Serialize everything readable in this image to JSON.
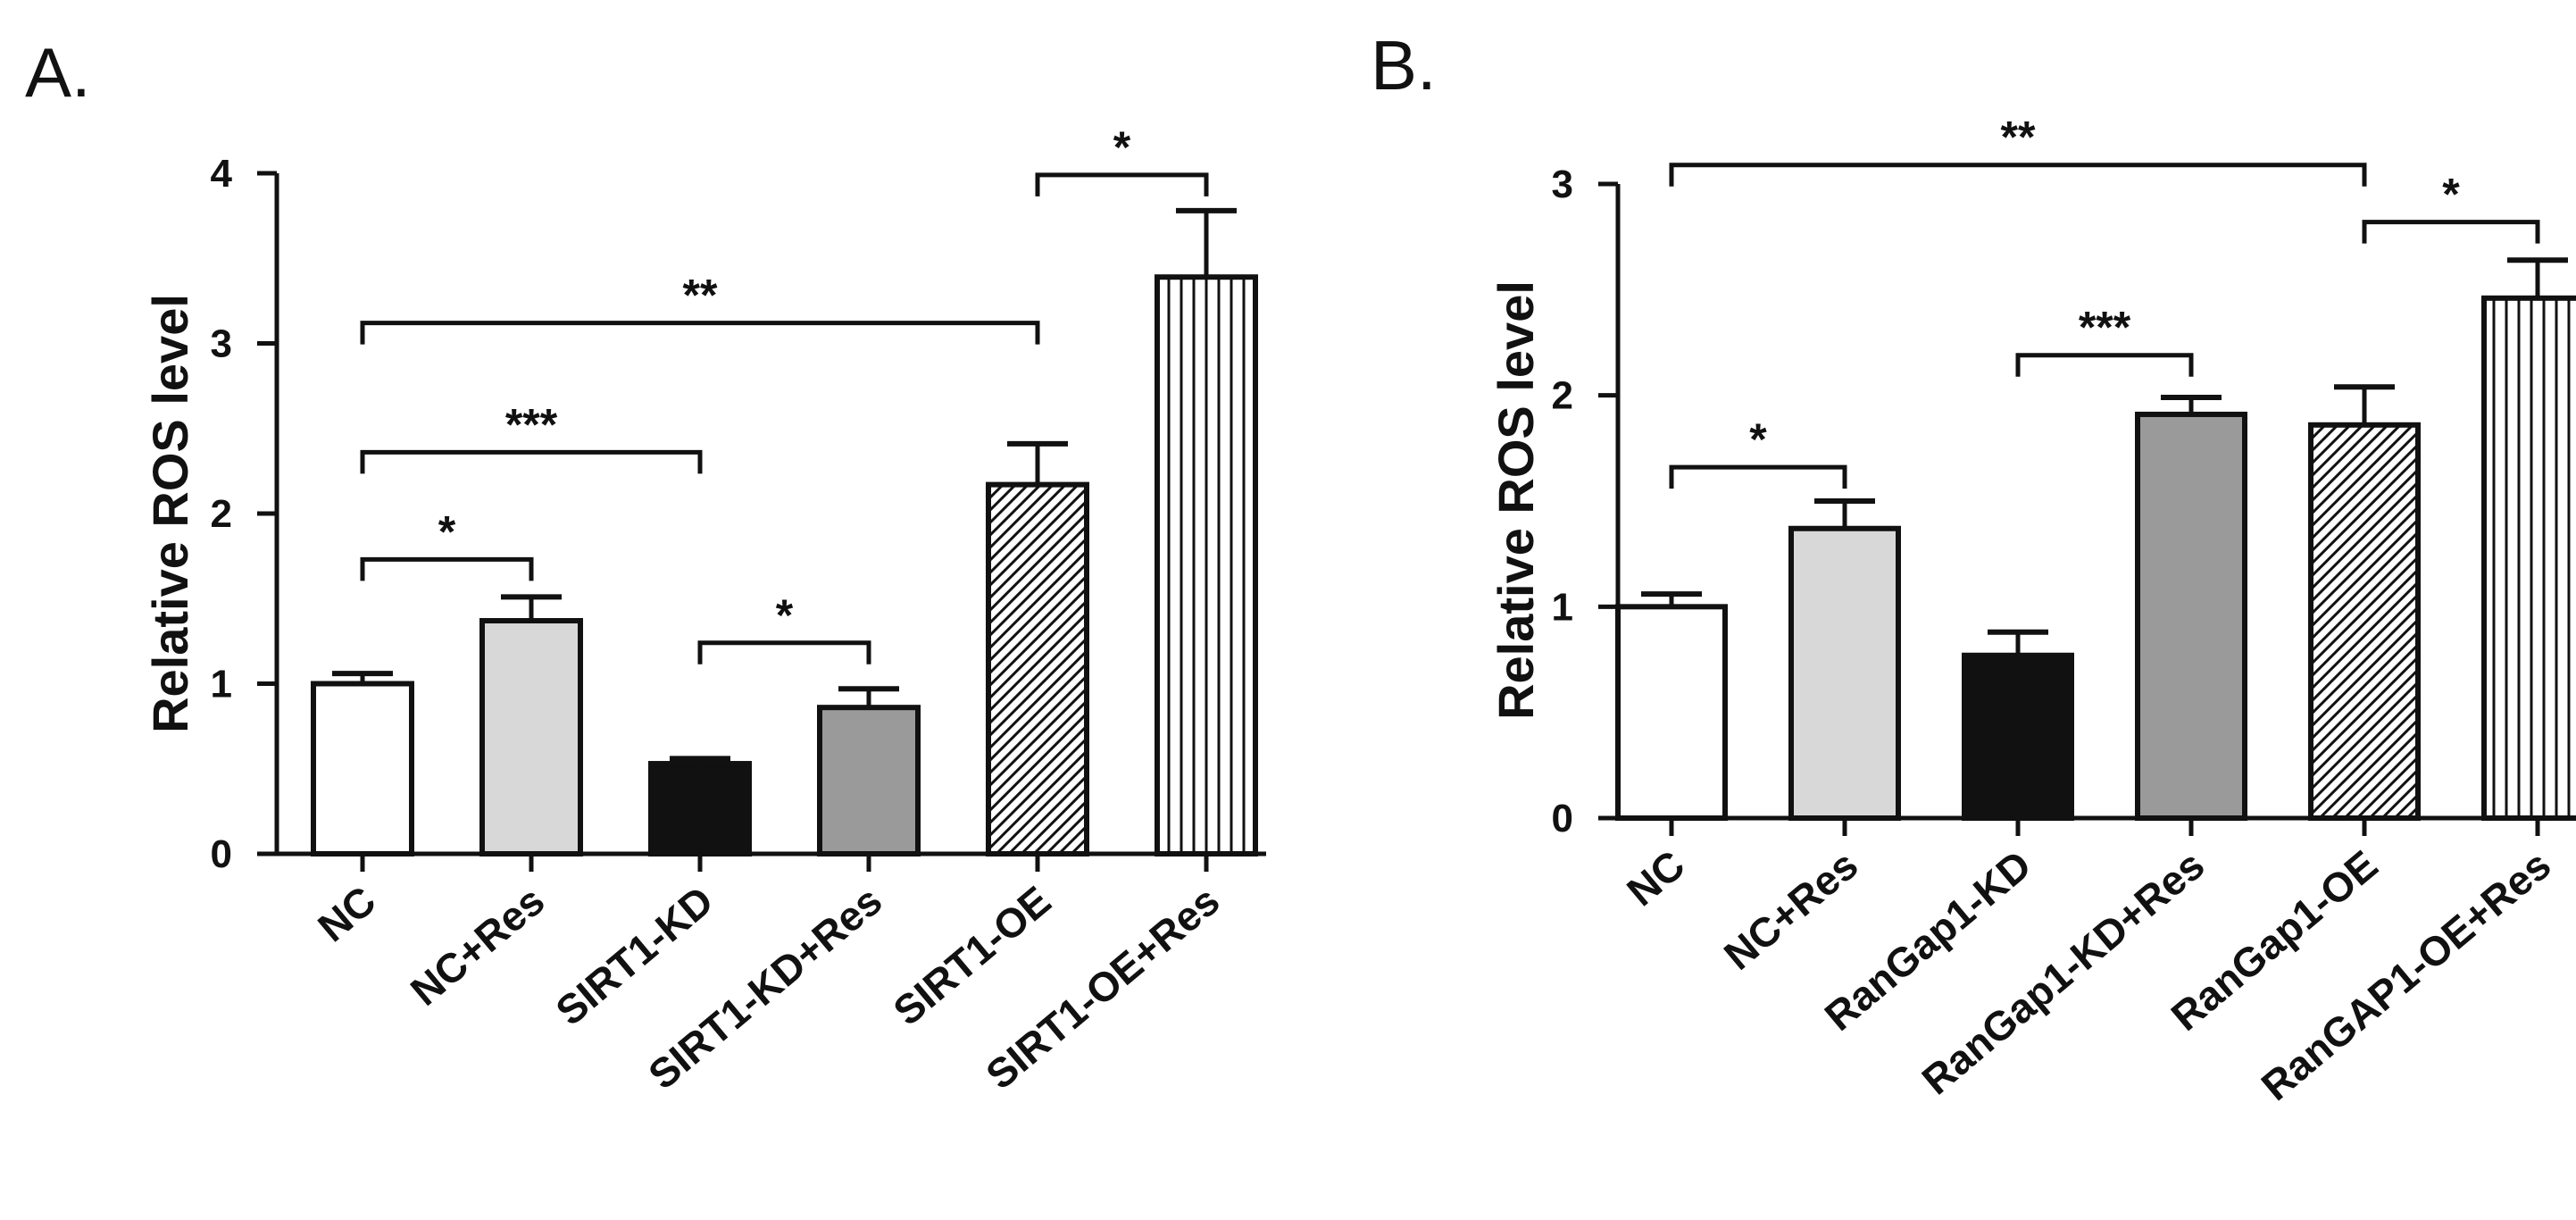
{
  "chart_data": [
    {
      "panel": "A.",
      "type": "bar",
      "ylabel": "Relative ROS level",
      "xlabel": "",
      "ylim": [
        0,
        4
      ],
      "yticks": [
        "0",
        "1",
        "2",
        "3",
        "4"
      ],
      "categories": [
        "NC",
        "NC+Res",
        "SIRT1-KD",
        "SIRT1-KD+Res",
        "SIRT1-OE",
        "SIRT1-OE+Res"
      ],
      "values": [
        1.0,
        1.37,
        0.53,
        0.86,
        2.17,
        3.39
      ],
      "errors": [
        0.06,
        0.14,
        0.03,
        0.11,
        0.24,
        0.39
      ],
      "fills": [
        "white",
        "lightgray",
        "black",
        "gray",
        "diagonal",
        "vertical"
      ],
      "comparisons": [
        {
          "from": 0,
          "to": 1,
          "label": "*",
          "y": 1.73
        },
        {
          "from": 0,
          "to": 2,
          "label": "***",
          "y": 2.36
        },
        {
          "from": 2,
          "to": 3,
          "label": "*",
          "y": 1.24
        },
        {
          "from": 0,
          "to": 4,
          "label": "**",
          "y": 3.12
        },
        {
          "from": 4,
          "to": 5,
          "label": "*",
          "y": 3.99
        }
      ]
    },
    {
      "panel": "B.",
      "type": "bar",
      "ylabel": "Relative ROS level",
      "xlabel": "",
      "ylim": [
        0,
        3
      ],
      "yticks": [
        "0",
        "1",
        "2",
        "3"
      ],
      "categories": [
        "NC",
        "NC+Res",
        "RanGap1-KD",
        "RanGap1-KD+Res",
        "RanGap1-OE",
        "RanGAP1-OE+Res"
      ],
      "values": [
        1.0,
        1.37,
        0.77,
        1.91,
        1.86,
        2.46
      ],
      "errors": [
        0.06,
        0.13,
        0.11,
        0.08,
        0.18,
        0.18
      ],
      "fills": [
        "white",
        "lightgray",
        "black",
        "gray",
        "diagonal",
        "vertical"
      ],
      "comparisons": [
        {
          "from": 0,
          "to": 1,
          "label": "*",
          "y": 1.66
        },
        {
          "from": 2,
          "to": 3,
          "label": "***",
          "y": 2.19
        },
        {
          "from": 0,
          "to": 4,
          "label": "**",
          "y": 3.09
        },
        {
          "from": 4,
          "to": 5,
          "label": "*",
          "y": 2.82
        }
      ]
    }
  ]
}
